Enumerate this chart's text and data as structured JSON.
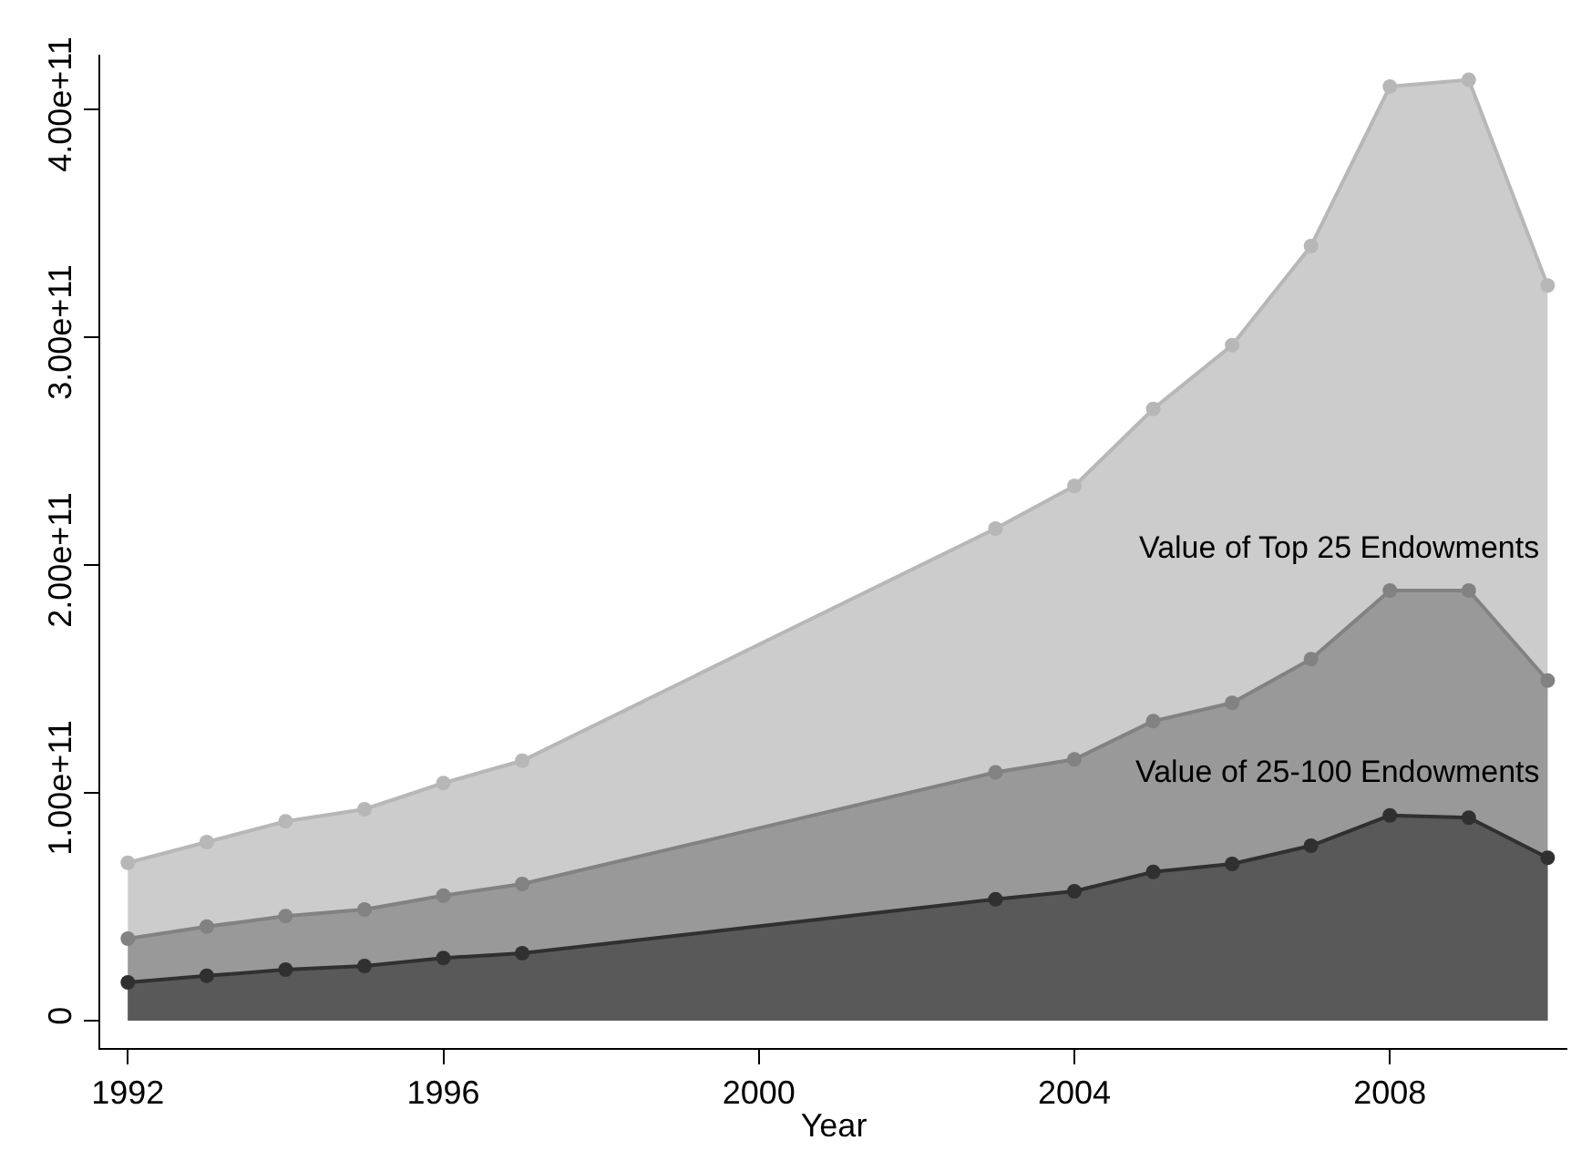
{
  "chart_data": {
    "type": "area",
    "xlabel": "Year",
    "x": [
      1992,
      1993,
      1994,
      1995,
      1996,
      1997,
      2003,
      2004,
      2005,
      2006,
      2007,
      2008,
      2009,
      2010
    ],
    "series": [
      {
        "name": "Value of Top 25 Endowments",
        "color": "#cccccc",
        "values": [
          69300000000.0,
          78400000000.0,
          87500000000.0,
          92800000000.0,
          104300000000.0,
          114100000000.0,
          216000000000.0,
          234700000000.0,
          268500000000.0,
          296500000000.0,
          340000000000.0,
          410000000000.0,
          413000000000.0,
          322700000000.0
        ]
      },
      {
        "name": "Value of 25-100 Endowments",
        "color": "#999999",
        "values": [
          36000000000.0,
          41300000000.0,
          45900000000.0,
          48800000000.0,
          54900000000.0,
          60000000000.0,
          109000000000.0,
          114700000000.0,
          131500000000.0,
          139500000000.0,
          158700000000.0,
          188800000000.0,
          188800000000.0,
          149300000000.0
        ]
      },
      {
        "color": "#595959",
        "values": [
          16800000000.0,
          19700000000.0,
          22400000000.0,
          24000000000.0,
          27500000000.0,
          29600000000.0,
          53300000000.0,
          56800000000.0,
          65300000000.0,
          68800000000.0,
          76800000000.0,
          90100000000.0,
          89100000000.0,
          71500000000.0
        ]
      }
    ],
    "xlim": [
      1991.65,
      2010.25
    ],
    "xticks": [
      1992,
      1996,
      2000,
      2004,
      2008
    ],
    "ylim": [
      -12000000000.0,
      424000000000.0
    ],
    "yticks": [
      0,
      {
        "value": 100000000000.0,
        "label": "1.00e+11"
      },
      {
        "value": 200000000000.0,
        "label": "2.00e+11"
      },
      {
        "value": 300000000000.0,
        "label": "3.00e+11"
      },
      {
        "value": 400000000000.0,
        "label": "4.00e+11"
      }
    ],
    "marker": "circle",
    "line_style": "solid"
  }
}
